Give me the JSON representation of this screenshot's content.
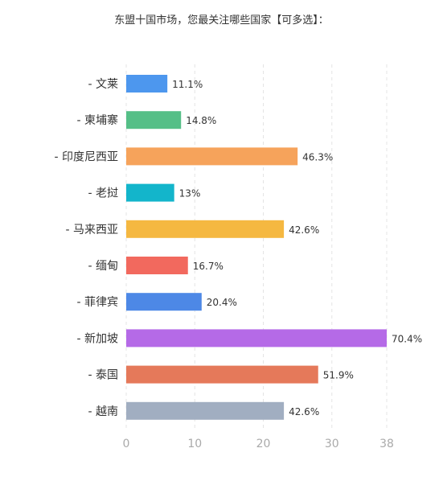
{
  "chart_data": {
    "type": "bar",
    "orientation": "horizontal",
    "title": "东盟十国市场，您最关注哪些国家【可多选】：",
    "categories": [
      "- 文莱",
      "- 柬埔寨",
      "- 印度尼西亚",
      "- 老挝",
      "- 马来西亚",
      "- 缅甸",
      "- 菲律宾",
      "- 新加坡",
      "- 泰国",
      "- 越南"
    ],
    "values": [
      6,
      8,
      25,
      7,
      23,
      9,
      11,
      38,
      28,
      23
    ],
    "data_labels": [
      "11.1%",
      "14.8%",
      "46.3%",
      "13%",
      "42.6%",
      "16.7%",
      "20.4%",
      "70.4%",
      "51.9%",
      "42.6%"
    ],
    "bar_colors": [
      "#4d97ee",
      "#55bf87",
      "#f6a35b",
      "#13b5cb",
      "#f5b841",
      "#f2695e",
      "#4d88e6",
      "#b56ae7",
      "#e5795a",
      "#a1aec1"
    ],
    "x_ticks": [
      "0",
      "10",
      "20",
      "30",
      "38"
    ],
    "xlim": [
      0,
      38
    ],
    "grid": true,
    "legend": "none"
  }
}
